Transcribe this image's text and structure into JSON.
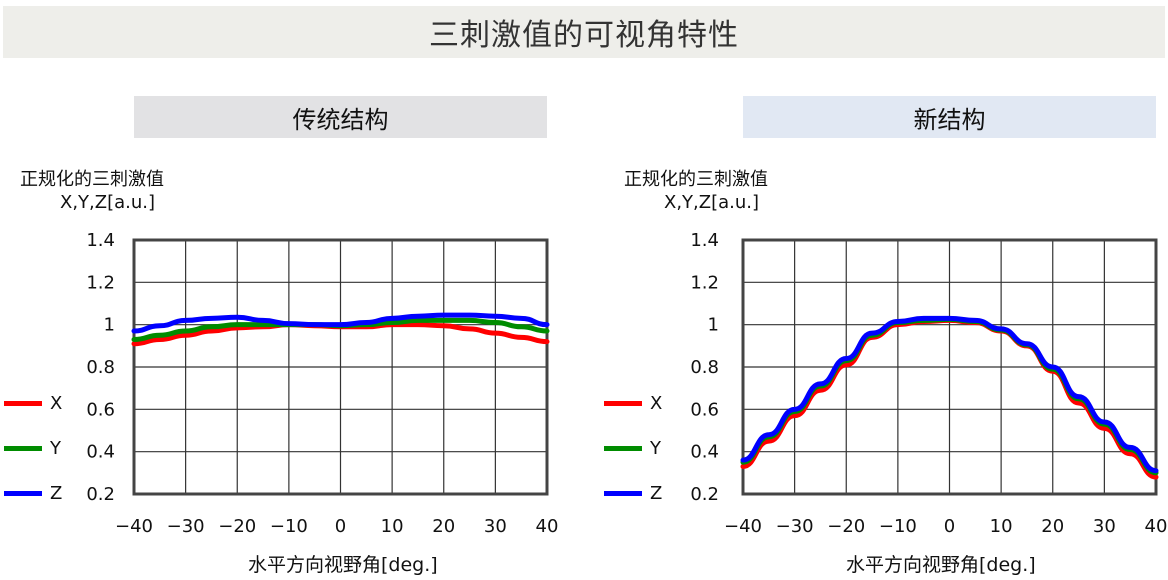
{
  "title": "三刺激值的可视角特性",
  "colors": {
    "X": "#ff0000",
    "Y": "#008c00",
    "Z": "#0000ff"
  },
  "chart_data": [
    {
      "type": "line",
      "title": "传统结构",
      "ylabel_line1": "正规化的三刺激值",
      "ylabel_line2": "X,Y,Z[a.u.]",
      "xlabel": "水平方向视野角[deg.]",
      "xlim": [
        -40,
        40
      ],
      "ylim": [
        0.2,
        1.4
      ],
      "xticks": [
        -40,
        -30,
        -20,
        -10,
        0,
        10,
        20,
        30,
        40
      ],
      "xtick_labels": [
        "−40",
        "−30",
        "−20",
        "−10",
        "0",
        "10",
        "20",
        "30",
        "40"
      ],
      "yticks": [
        0.2,
        0.4,
        0.6,
        0.8,
        1.0,
        1.2,
        1.4
      ],
      "ytick_labels": [
        "0.2",
        "0.4",
        "0.6",
        "0.8",
        "1",
        "1.2",
        "1.4"
      ],
      "grid": true,
      "legend": [
        "X",
        "Y",
        "Z"
      ],
      "x": [
        -40,
        -35,
        -30,
        -25,
        -20,
        -15,
        -10,
        -5,
        0,
        5,
        10,
        15,
        20,
        25,
        30,
        35,
        40
      ],
      "series": [
        {
          "name": "X",
          "values": [
            0.91,
            0.93,
            0.95,
            0.97,
            0.985,
            0.99,
            1.0,
            0.995,
            0.99,
            0.99,
            1.0,
            1.0,
            0.995,
            0.98,
            0.96,
            0.94,
            0.92
          ]
        },
        {
          "name": "Y",
          "values": [
            0.93,
            0.95,
            0.97,
            0.99,
            1.0,
            1.0,
            1.0,
            1.0,
            0.995,
            1.0,
            1.01,
            1.02,
            1.02,
            1.02,
            1.01,
            0.99,
            0.97
          ]
        },
        {
          "name": "Z",
          "values": [
            0.97,
            0.995,
            1.02,
            1.03,
            1.035,
            1.02,
            1.005,
            1.0,
            1.0,
            1.01,
            1.03,
            1.04,
            1.045,
            1.045,
            1.04,
            1.03,
            1.0
          ]
        }
      ]
    },
    {
      "type": "line",
      "title": "新结构",
      "ylabel_line1": "正规化的三刺激值",
      "ylabel_line2": "X,Y,Z[a.u.]",
      "xlabel": "水平方向视野角[deg.]",
      "xlim": [
        -40,
        40
      ],
      "ylim": [
        0.2,
        1.4
      ],
      "xticks": [
        -40,
        -30,
        -20,
        -10,
        0,
        10,
        20,
        30,
        40
      ],
      "xtick_labels": [
        "−40",
        "−30",
        "−20",
        "−10",
        "0",
        "10",
        "20",
        "30",
        "40"
      ],
      "yticks": [
        0.2,
        0.4,
        0.6,
        0.8,
        1.0,
        1.2,
        1.4
      ],
      "ytick_labels": [
        "0.2",
        "0.4",
        "0.6",
        "0.8",
        "1",
        "1.2",
        "1.4"
      ],
      "grid": true,
      "legend": [
        "X",
        "Y",
        "Z"
      ],
      "x": [
        -40,
        -35,
        -30,
        -25,
        -20,
        -15,
        -10,
        -5,
        0,
        5,
        10,
        15,
        20,
        25,
        30,
        35,
        40
      ],
      "series": [
        {
          "name": "X",
          "values": [
            0.33,
            0.45,
            0.57,
            0.69,
            0.81,
            0.94,
            1.0,
            1.015,
            1.02,
            1.01,
            0.97,
            0.9,
            0.78,
            0.63,
            0.51,
            0.39,
            0.28
          ]
        },
        {
          "name": "Y",
          "values": [
            0.35,
            0.47,
            0.59,
            0.71,
            0.83,
            0.95,
            1.01,
            1.02,
            1.025,
            1.015,
            0.975,
            0.905,
            0.79,
            0.65,
            0.53,
            0.41,
            0.3
          ]
        },
        {
          "name": "Z",
          "values": [
            0.36,
            0.48,
            0.6,
            0.72,
            0.84,
            0.96,
            1.015,
            1.03,
            1.03,
            1.02,
            0.98,
            0.91,
            0.8,
            0.66,
            0.54,
            0.42,
            0.31
          ]
        }
      ]
    }
  ]
}
